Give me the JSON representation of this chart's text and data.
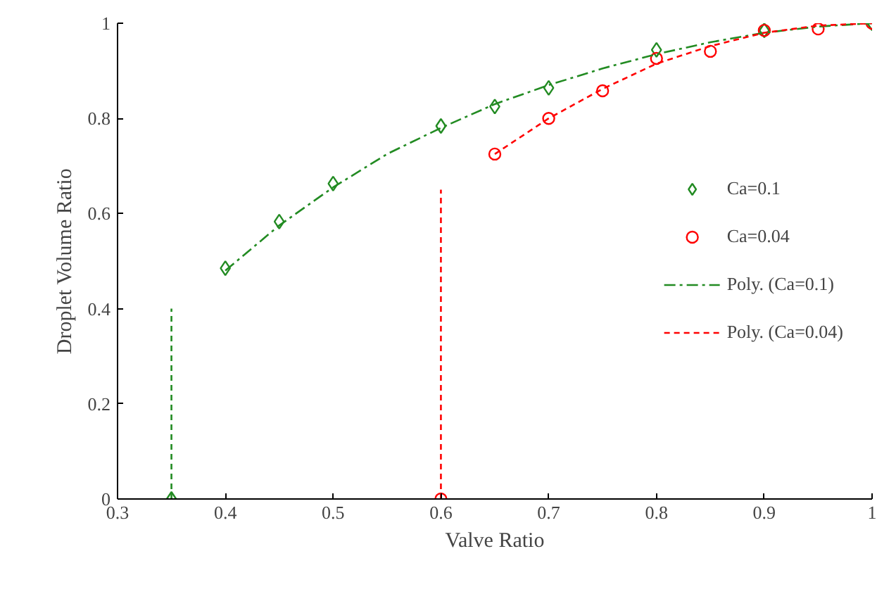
{
  "chart_data": {
    "type": "scatter",
    "xlabel": "Valve Ratio",
    "ylabel": "Droplet Volume Ratio",
    "xlim": [
      0.3,
      1
    ],
    "ylim": [
      0,
      1
    ],
    "xticks": [
      0.3,
      0.4,
      0.5,
      0.6,
      0.7,
      0.8,
      0.9,
      1
    ],
    "yticks": [
      0,
      0.2,
      0.4,
      0.6,
      0.8,
      1
    ],
    "grid": false,
    "legend": "right",
    "series": [
      {
        "name": "Ca=0.1",
        "color": "#228b22",
        "marker": "diamond",
        "x": [
          0.35,
          0.4,
          0.45,
          0.5,
          0.6,
          0.65,
          0.7,
          0.8,
          0.9,
          1.0
        ],
        "values": [
          0,
          0.485,
          0.583,
          0.663,
          0.784,
          0.825,
          0.864,
          0.944,
          0.985,
          1.0
        ]
      },
      {
        "name": "Ca=0.04",
        "color": "#ff0000",
        "marker": "circle",
        "x": [
          0.6,
          0.65,
          0.7,
          0.75,
          0.8,
          0.85,
          0.9,
          0.95,
          1.0
        ],
        "values": [
          0,
          0.725,
          0.8,
          0.858,
          0.926,
          0.941,
          0.985,
          0.988,
          1.0
        ]
      },
      {
        "name": "Poly. (Ca=0.1)",
        "type": "line",
        "color": "#228b22",
        "line_style": "dashdot",
        "x": [
          0.4,
          0.45,
          0.5,
          0.55,
          0.6,
          0.65,
          0.7,
          0.75,
          0.8,
          0.85,
          0.9,
          0.95,
          1.0
        ],
        "values": [
          0.48,
          0.575,
          0.655,
          0.725,
          0.78,
          0.83,
          0.87,
          0.905,
          0.935,
          0.96,
          0.98,
          0.993,
          1.0
        ]
      },
      {
        "name": "Poly. (Ca=0.04)",
        "type": "line",
        "color": "#ff0000",
        "line_style": "dashed",
        "x": [
          0.65,
          0.7,
          0.75,
          0.8,
          0.85,
          0.9,
          0.95,
          1.0
        ],
        "values": [
          0.725,
          0.8,
          0.862,
          0.915,
          0.952,
          0.98,
          0.995,
          1.0
        ]
      },
      {
        "type": "line",
        "color": "#228b22",
        "line_style": "dashed",
        "x": [
          0.35,
          0.35
        ],
        "values": [
          0,
          0.4
        ]
      },
      {
        "type": "line",
        "color": "#ff0000",
        "line_style": "dashed",
        "x": [
          0.6,
          0.6
        ],
        "values": [
          0,
          0.65
        ]
      }
    ]
  }
}
